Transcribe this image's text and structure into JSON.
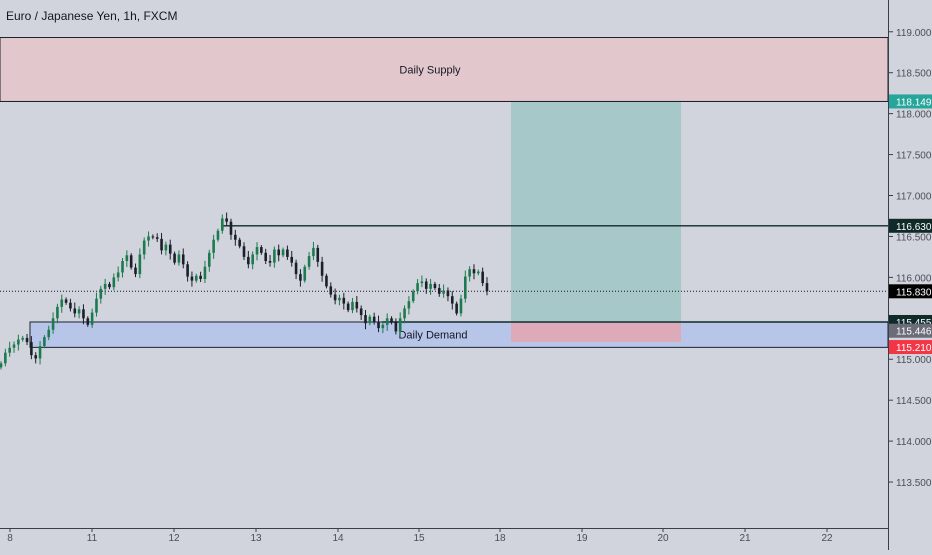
{
  "header": {
    "symbol_title": "Euro / Japanese Yen, 1h, FXCM"
  },
  "colors": {
    "background": "#d1d4dc",
    "axis_background": "#d1d4dc",
    "text": "#131722",
    "axis_text": "#4a4e58",
    "supply_fill": "#e2c8cd",
    "demand_fill": "#b7c5e8",
    "target_fill": "#a6c8c8",
    "stop_fill": "#dcaab8",
    "candle_up": "#1d7a4e",
    "candle_down": "#1b1f2a",
    "level_line": "#102a2a",
    "price_marker": "#131722",
    "stop_badge": "#f23645",
    "target_badge": "#26a69a",
    "demand_badge": "#6a6d78"
  },
  "chart_data": {
    "type": "candlestick",
    "symbol": "EURJPY",
    "timeframe": "1h",
    "source": "FXCM",
    "x_tick_labels": [
      "8",
      "11",
      "12",
      "13",
      "14",
      "15",
      "18",
      "19",
      "20",
      "21",
      "22"
    ],
    "y_ticks": [
      "113.500",
      "114.000",
      "114.500",
      "115.000",
      "115.500",
      "116.000",
      "116.500",
      "117.000",
      "117.500",
      "118.000",
      "118.500",
      "119.000"
    ],
    "ylim": [
      113.2,
      119.15
    ],
    "grid": false,
    "zones": [
      {
        "name": "Daily Supply",
        "y_top": 118.93,
        "y_bottom": 118.149
      },
      {
        "name": "Daily Demand",
        "y_top": 115.455,
        "y_bottom": 115.145
      }
    ],
    "position": {
      "type": "long",
      "entry": 115.446,
      "target": 118.149,
      "stop": 115.21,
      "start_date": "18",
      "end_date": "20"
    },
    "levels": [
      116.63,
      115.455
    ],
    "current_price": 115.83,
    "price_badges": [
      {
        "label": "118.149",
        "value": 118.149,
        "role": "target"
      },
      {
        "label": "116.630",
        "value": 116.63,
        "role": "level"
      },
      {
        "label": "115.830",
        "value": 115.83,
        "role": "current"
      },
      {
        "label": "115.455",
        "value": 115.455,
        "role": "level"
      },
      {
        "label": "115.446",
        "value": 115.446,
        "role": "entry"
      },
      {
        "label": "115.210",
        "value": 115.21,
        "role": "stop"
      }
    ],
    "closes": [
      114.95,
      115.08,
      115.14,
      115.18,
      115.24,
      115.26,
      115.21,
      115.05,
      115.01,
      115.16,
      115.27,
      115.36,
      115.5,
      115.64,
      115.73,
      115.69,
      115.62,
      115.56,
      115.61,
      115.5,
      115.42,
      115.57,
      115.74,
      115.86,
      115.92,
      115.88,
      116.0,
      116.06,
      116.2,
      116.27,
      116.12,
      116.04,
      116.28,
      116.45,
      116.5,
      116.49,
      116.47,
      116.33,
      116.4,
      116.29,
      116.18,
      116.28,
      116.16,
      116.01,
      115.96,
      116.02,
      115.98,
      116.13,
      116.3,
      116.46,
      116.57,
      116.72,
      116.68,
      116.52,
      116.46,
      116.38,
      116.25,
      116.16,
      116.28,
      116.37,
      116.3,
      116.2,
      116.18,
      116.34,
      116.27,
      116.34,
      116.25,
      116.18,
      116.04,
      115.96,
      116.13,
      116.26,
      116.36,
      116.19,
      116.02,
      115.89,
      115.79,
      115.72,
      115.75,
      115.68,
      115.6,
      115.7,
      115.62,
      115.54,
      115.44,
      115.52,
      115.46,
      115.38,
      115.42,
      115.5,
      115.45,
      115.34,
      115.5,
      115.62,
      115.71,
      115.83,
      115.93,
      115.95,
      115.86,
      115.92,
      115.87,
      115.8,
      115.84,
      115.77,
      115.68,
      115.56,
      115.74,
      116.01,
      116.1,
      116.05,
      116.07,
      115.93,
      115.83
    ]
  }
}
